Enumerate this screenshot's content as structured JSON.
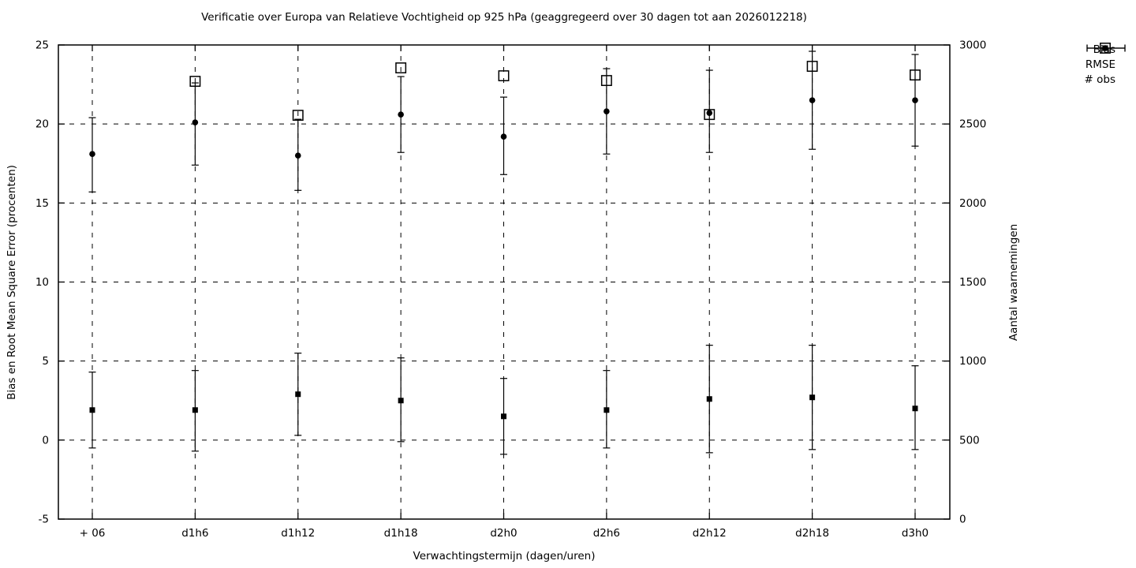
{
  "chart_data": {
    "type": "scatter",
    "title": "Verificatie over Europa van Relatieve Vochtigheid op 925 hPa (geaggregeerd over 30 dagen tot aan 2026012218)",
    "xlabel": "Verwachtingstermijn (dagen/uren)",
    "ylabel_left": "Bias en Root Mean Square Error (procenten)",
    "ylabel_right": "Aantal waarnemingen",
    "categories": [
      "+ 06",
      "d1h6",
      "d1h12",
      "d1h18",
      "d2h0",
      "d2h6",
      "d2h12",
      "d2h18",
      "d3h0"
    ],
    "ylim_left": [
      -5,
      25
    ],
    "yticks_left": [
      -5,
      0,
      5,
      10,
      15,
      20,
      25
    ],
    "ylim_right": [
      0,
      3000
    ],
    "yticks_right": [
      0,
      500,
      1000,
      1500,
      2000,
      2500,
      3000
    ],
    "grid": true,
    "grid_style": "dashed",
    "legend_position": "outside-top-right",
    "series": [
      {
        "name": "Bias",
        "axis": "left",
        "marker": "filled-square",
        "values": [
          1.9,
          1.9,
          2.9,
          2.5,
          1.5,
          1.9,
          2.6,
          2.7,
          2.0
        ],
        "err_low": [
          -0.5,
          -0.7,
          0.3,
          -0.1,
          -0.9,
          -0.5,
          -0.8,
          -0.6,
          -0.6
        ],
        "err_high": [
          4.3,
          4.4,
          5.5,
          5.2,
          3.9,
          4.4,
          6.0,
          6.0,
          4.7
        ]
      },
      {
        "name": "RMSE",
        "axis": "left",
        "marker": "filled-circle",
        "values": [
          18.1,
          20.1,
          18.0,
          20.6,
          19.2,
          20.8,
          20.7,
          21.5,
          21.5
        ],
        "err_low": [
          15.7,
          17.4,
          15.8,
          18.2,
          16.8,
          18.1,
          18.2,
          18.4,
          18.6
        ],
        "err_high": [
          20.4,
          22.6,
          20.3,
          23.0,
          21.7,
          23.5,
          23.4,
          24.6,
          24.4
        ]
      },
      {
        "name": "# obs",
        "axis": "right",
        "marker": "open-square",
        "values": [
          null,
          2770,
          2555,
          2855,
          2805,
          2775,
          2560,
          2865,
          2810
        ]
      }
    ],
    "colors": {
      "foreground": "#000000",
      "background": "#ffffff"
    }
  }
}
